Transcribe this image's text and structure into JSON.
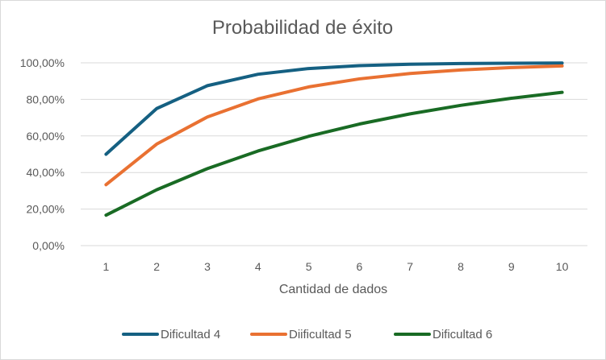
{
  "chart_data": {
    "type": "line",
    "title": "Probabilidad de éxito",
    "xlabel": "Cantidad de dados",
    "ylabel": "",
    "categories": [
      "1",
      "2",
      "3",
      "4",
      "5",
      "6",
      "7",
      "8",
      "9",
      "10"
    ],
    "ylim": [
      0,
      100
    ],
    "yticks": [
      "0,00%",
      "20,00%",
      "40,00%",
      "60,00%",
      "80,00%",
      "100,00%"
    ],
    "grid": true,
    "legend_position": "bottom",
    "series": [
      {
        "name": "Dificultad 4",
        "color": "#156082",
        "values": [
          50.0,
          75.0,
          87.5,
          93.75,
          96.88,
          98.44,
          99.22,
          99.61,
          99.8,
          99.9
        ]
      },
      {
        "name": "Diificultad 5",
        "color": "#E97132",
        "values": [
          33.33,
          55.56,
          70.37,
          80.25,
          86.83,
          91.22,
          94.15,
          96.1,
          97.4,
          98.27
        ]
      },
      {
        "name": "Dificultad 6",
        "color": "#196B24",
        "values": [
          16.67,
          30.56,
          42.13,
          51.77,
          59.81,
          66.51,
          72.09,
          76.74,
          80.62,
          83.85
        ]
      }
    ]
  }
}
